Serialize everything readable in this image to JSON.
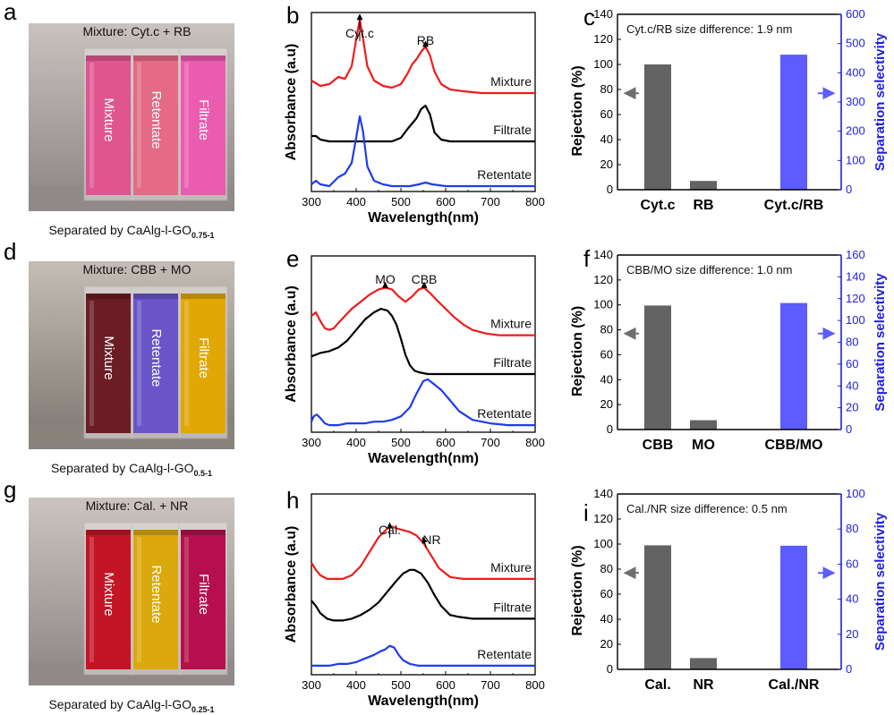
{
  "photos": [
    {
      "letter": "a",
      "title": "Mixture: Cyt.c + RB",
      "caption_main": "Separated by CaAlg-l-GO",
      "caption_sub": "0.75-1",
      "vials": [
        {
          "label": "Mixture",
          "color": "#e0558f"
        },
        {
          "label": "Retentate",
          "color": "#e46a86"
        },
        {
          "label": "Filtrate",
          "color": "#ea5cae"
        }
      ],
      "bg_top": "#c9c2bf",
      "bg_bottom": "#8a8483",
      "floor": "#8f8a87"
    },
    {
      "letter": "d",
      "title": "Mixture: CBB + MO",
      "caption_main": "Separated by CaAlg-l-GO",
      "caption_sub": "0.5-1",
      "vials": [
        {
          "label": "Mixture",
          "color": "#6b1c24"
        },
        {
          "label": "Retentate",
          "color": "#6a55c8"
        },
        {
          "label": "Filtrate",
          "color": "#e1a704"
        }
      ],
      "bg_top": "#c4bdb5",
      "bg_bottom": "#7d7670",
      "floor": "#8a847d"
    },
    {
      "letter": "g",
      "title": "Mixture: Cal. + NR",
      "caption_main": "Separated by CaAlg-l-GO",
      "caption_sub": "0.25-1",
      "vials": [
        {
          "label": "Mixture",
          "color": "#c41526"
        },
        {
          "label": "Retentate",
          "color": "#dba90e"
        },
        {
          "label": "Filtrate",
          "color": "#b5104d"
        }
      ],
      "bg_top": "#ccc4bf",
      "bg_bottom": "#8c8584",
      "floor": "#908a88"
    }
  ],
  "chart_data": [
    {
      "panel": "b",
      "type": "line",
      "xlabel": "Wavelength(nm)",
      "ylabel": "Absorbance (a.u)",
      "xlim": [
        300,
        800
      ],
      "xticks": [
        300,
        400,
        500,
        600,
        700,
        800
      ],
      "series": [
        {
          "name": "Mixture",
          "color": "#ee1c1c",
          "x": [
            300,
            320,
            340,
            360,
            375,
            390,
            400,
            408,
            415,
            425,
            440,
            460,
            480,
            500,
            515,
            525,
            535,
            545,
            555,
            565,
            575,
            590,
            610,
            640,
            680,
            740,
            800
          ],
          "y": [
            0.62,
            0.59,
            0.6,
            0.64,
            0.63,
            0.7,
            0.85,
            0.96,
            0.86,
            0.7,
            0.62,
            0.59,
            0.58,
            0.6,
            0.66,
            0.71,
            0.74,
            0.78,
            0.81,
            0.76,
            0.67,
            0.6,
            0.57,
            0.56,
            0.55,
            0.55,
            0.55
          ]
        },
        {
          "name": "Filtrate",
          "color": "#000000",
          "x": [
            300,
            310,
            320,
            340,
            360,
            380,
            400,
            420,
            440,
            460,
            480,
            500,
            515,
            525,
            535,
            545,
            555,
            565,
            575,
            590,
            610,
            640,
            680,
            740,
            800
          ],
          "y": [
            0.31,
            0.31,
            0.29,
            0.28,
            0.28,
            0.28,
            0.28,
            0.28,
            0.28,
            0.28,
            0.28,
            0.3,
            0.35,
            0.38,
            0.41,
            0.46,
            0.48,
            0.43,
            0.33,
            0.29,
            0.28,
            0.28,
            0.28,
            0.28,
            0.28
          ]
        },
        {
          "name": "Retentate",
          "color": "#1e3cf0",
          "x": [
            300,
            310,
            320,
            340,
            360,
            375,
            390,
            400,
            408,
            415,
            425,
            440,
            460,
            480,
            500,
            520,
            540,
            555,
            570,
            600,
            640,
            700,
            800
          ],
          "y": [
            0.04,
            0.06,
            0.04,
            0.03,
            0.08,
            0.1,
            0.16,
            0.3,
            0.42,
            0.34,
            0.14,
            0.06,
            0.04,
            0.03,
            0.03,
            0.03,
            0.04,
            0.05,
            0.04,
            0.03,
            0.03,
            0.03,
            0.03
          ]
        }
      ],
      "annotations": [
        {
          "text": "Cyt.c",
          "x": 408
        },
        {
          "text": "RB",
          "x": 555
        }
      ]
    },
    {
      "panel": "e",
      "type": "line",
      "xlabel": "Wavelength(nm)",
      "ylabel": "Absorbance (a.u)",
      "xlim": [
        300,
        800
      ],
      "xticks": [
        300,
        400,
        500,
        600,
        700,
        800
      ],
      "series": [
        {
          "name": "Mixture",
          "color": "#ee1c1c",
          "x": [
            300,
            310,
            320,
            330,
            340,
            350,
            360,
            375,
            390,
            410,
            430,
            450,
            465,
            480,
            495,
            510,
            525,
            540,
            552,
            565,
            580,
            600,
            620,
            640,
            660,
            690,
            720,
            760,
            800
          ],
          "y": [
            0.66,
            0.68,
            0.63,
            0.59,
            0.58,
            0.59,
            0.62,
            0.66,
            0.7,
            0.74,
            0.78,
            0.81,
            0.82,
            0.81,
            0.77,
            0.74,
            0.77,
            0.81,
            0.82,
            0.79,
            0.75,
            0.7,
            0.65,
            0.61,
            0.58,
            0.56,
            0.55,
            0.55,
            0.55
          ]
        },
        {
          "name": "Filtrate",
          "color": "#000000",
          "x": [
            300,
            320,
            340,
            360,
            380,
            400,
            420,
            440,
            455,
            470,
            480,
            490,
            500,
            510,
            520,
            530,
            540,
            560,
            580,
            620,
            680,
            740,
            800
          ],
          "y": [
            0.43,
            0.45,
            0.46,
            0.48,
            0.52,
            0.58,
            0.64,
            0.68,
            0.7,
            0.69,
            0.66,
            0.61,
            0.53,
            0.44,
            0.38,
            0.35,
            0.34,
            0.33,
            0.33,
            0.33,
            0.33,
            0.33,
            0.33
          ]
        },
        {
          "name": "Retentate",
          "color": "#1e3cf0",
          "x": [
            300,
            305,
            312,
            320,
            330,
            340,
            360,
            380,
            400,
            420,
            440,
            460,
            480,
            500,
            520,
            535,
            550,
            560,
            575,
            590,
            610,
            630,
            660,
            700,
            740,
            800
          ],
          "y": [
            0.06,
            0.09,
            0.1,
            0.08,
            0.05,
            0.04,
            0.04,
            0.05,
            0.05,
            0.05,
            0.06,
            0.06,
            0.07,
            0.09,
            0.14,
            0.22,
            0.29,
            0.3,
            0.27,
            0.24,
            0.18,
            0.12,
            0.07,
            0.05,
            0.04,
            0.04
          ]
        }
      ],
      "annotations": [
        {
          "text": "MO",
          "x": 465
        },
        {
          "text": "CBB",
          "x": 552
        }
      ]
    },
    {
      "panel": "h",
      "type": "line",
      "xlabel": "Wavelength(nm)",
      "ylabel": "Absorbance (a.u)",
      "xlim": [
        300,
        800
      ],
      "xticks": [
        300,
        400,
        500,
        600,
        700,
        800
      ],
      "series": [
        {
          "name": "Mixture",
          "color": "#ee1c1c",
          "x": [
            300,
            310,
            320,
            335,
            350,
            370,
            390,
            410,
            430,
            450,
            470,
            480,
            490,
            505,
            520,
            535,
            550,
            565,
            585,
            610,
            640,
            680,
            740,
            800
          ],
          "y": [
            0.62,
            0.58,
            0.55,
            0.53,
            0.53,
            0.53,
            0.55,
            0.6,
            0.68,
            0.76,
            0.81,
            0.82,
            0.81,
            0.8,
            0.79,
            0.77,
            0.73,
            0.67,
            0.59,
            0.54,
            0.53,
            0.53,
            0.53,
            0.53
          ]
        },
        {
          "name": "Filtrate",
          "color": "#000000",
          "x": [
            300,
            310,
            320,
            335,
            350,
            370,
            390,
            410,
            430,
            450,
            470,
            490,
            505,
            520,
            530,
            545,
            560,
            575,
            590,
            610,
            630,
            660,
            700,
            760,
            800
          ],
          "y": [
            0.41,
            0.38,
            0.34,
            0.31,
            0.3,
            0.3,
            0.31,
            0.33,
            0.36,
            0.4,
            0.46,
            0.52,
            0.56,
            0.58,
            0.58,
            0.56,
            0.51,
            0.44,
            0.38,
            0.33,
            0.32,
            0.31,
            0.31,
            0.31,
            0.31
          ]
        },
        {
          "name": "Retentate",
          "color": "#1e3cf0",
          "x": [
            300,
            320,
            340,
            360,
            380,
            400,
            420,
            440,
            455,
            465,
            475,
            485,
            495,
            505,
            520,
            540,
            560,
            600,
            650,
            700,
            800
          ],
          "y": [
            0.05,
            0.05,
            0.05,
            0.06,
            0.06,
            0.07,
            0.09,
            0.11,
            0.13,
            0.14,
            0.16,
            0.15,
            0.11,
            0.08,
            0.06,
            0.05,
            0.05,
            0.05,
            0.05,
            0.05,
            0.05
          ]
        }
      ],
      "annotations": [
        {
          "text": "Cal.",
          "x": 475
        },
        {
          "text": "NR",
          "x": 545
        }
      ]
    },
    {
      "panel": "c",
      "type": "bar",
      "ylabel": "Rejection (%)",
      "y2label": "Separation selectivity",
      "ylim": [
        0,
        140
      ],
      "yticks": [
        0,
        20,
        40,
        60,
        80,
        100,
        120,
        140
      ],
      "y2lim": [
        0,
        600
      ],
      "y2ticks": [
        0,
        100,
        200,
        300,
        400,
        500,
        600
      ],
      "categories": [
        "Cyt.c",
        "RB",
        "Cyt.c/RB"
      ],
      "rejection": [
        100,
        7
      ],
      "selectivity": 462,
      "annotation": "Cyt.c/RB size difference: 1.9 nm"
    },
    {
      "panel": "f",
      "type": "bar",
      "ylabel": "Rejection (%)",
      "y2label": "Separation selectivity",
      "ylim": [
        0,
        140
      ],
      "yticks": [
        0,
        20,
        40,
        60,
        80,
        100,
        120,
        140
      ],
      "y2lim": [
        0,
        160
      ],
      "y2ticks": [
        0,
        20,
        40,
        60,
        80,
        100,
        120,
        140,
        160
      ],
      "categories": [
        "CBB",
        "MO",
        "CBB/MO"
      ],
      "rejection": [
        99.5,
        7.5
      ],
      "selectivity": 116,
      "annotation": "CBB/MO size difference: 1.0 nm"
    },
    {
      "panel": "i",
      "type": "bar",
      "ylabel": "Rejection (%)",
      "y2label": "Separation selectivity",
      "ylim": [
        0,
        140
      ],
      "yticks": [
        0,
        20,
        40,
        60,
        80,
        100,
        120,
        140
      ],
      "y2lim": [
        0,
        100
      ],
      "y2ticks": [
        0,
        20,
        40,
        60,
        80,
        100
      ],
      "categories": [
        "Cal.",
        "NR",
        "Cal./NR"
      ],
      "rejection": [
        99,
        9
      ],
      "selectivity": 70.5,
      "annotation": "Cal./NR size difference: 0.5 nm"
    }
  ],
  "colors": {
    "bar_gray": "#636363",
    "bar_blue": "#5c5cff",
    "axis_blue": "#1e1ee6",
    "arrow_gray": "#6e6e6e",
    "arrow_blue": "#5c5cff"
  }
}
